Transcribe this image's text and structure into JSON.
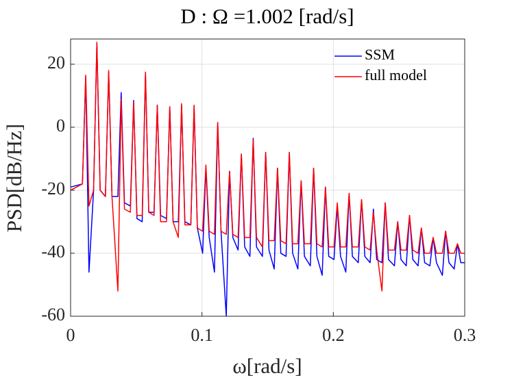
{
  "chart_data": {
    "type": "line",
    "title": "D : Ω =1.002 [rad/s]",
    "x_label": "ω[rad/s]",
    "y_label": "PSD[dB/Hz]",
    "x": [
      0,
      0.009,
      0.0115,
      0.014,
      0.0175,
      0.02,
      0.0225,
      0.0265,
      0.029,
      0.0315,
      0.036,
      0.0385,
      0.041,
      0.0455,
      0.048,
      0.0505,
      0.0545,
      0.057,
      0.0595,
      0.0635,
      0.066,
      0.0685,
      0.073,
      0.0755,
      0.078,
      0.082,
      0.0845,
      0.087,
      0.0915,
      0.094,
      0.0965,
      0.1005,
      0.103,
      0.1055,
      0.1095,
      0.112,
      0.1145,
      0.1185,
      0.121,
      0.1235,
      0.1275,
      0.13,
      0.1325,
      0.1365,
      0.139,
      0.1415,
      0.146,
      0.1485,
      0.151,
      0.155,
      0.1575,
      0.16,
      0.164,
      0.1665,
      0.169,
      0.173,
      0.1755,
      0.178,
      0.1825,
      0.185,
      0.1875,
      0.1915,
      0.194,
      0.1965,
      0.2005,
      0.203,
      0.2055,
      0.2095,
      0.212,
      0.2145,
      0.219,
      0.2215,
      0.224,
      0.228,
      0.2305,
      0.233,
      0.237,
      0.2395,
      0.242,
      0.2465,
      0.249,
      0.2515,
      0.2555,
      0.258,
      0.2605,
      0.2645,
      0.267,
      0.2695,
      0.2735,
      0.276,
      0.2785,
      0.283,
      0.2855,
      0.288,
      0.292,
      0.2945,
      0.297,
      0.3
    ],
    "series": [
      {
        "name": "SSM",
        "color": "#0000ff",
        "values": [
          -19,
          -18,
          16,
          -46,
          -20,
          26.5,
          -20,
          -22,
          17.5,
          -22,
          -22,
          11,
          -24,
          -25,
          8.5,
          -29,
          -30,
          17,
          -27,
          -27,
          7,
          -28,
          -29,
          6.5,
          -30,
          -30,
          7,
          -30,
          -31,
          6.5,
          -32,
          -40,
          -13,
          -35,
          -46,
          1.5,
          -33,
          -60,
          -14,
          -35,
          -39,
          -8.5,
          -38,
          -41,
          -3.5,
          -38,
          -41,
          -8,
          -39,
          -45,
          -13,
          -40,
          -41,
          -8,
          -40,
          -45,
          -17,
          -41,
          -44,
          -13,
          -41,
          -47,
          -19,
          -41,
          -42,
          -25,
          -41,
          -46,
          -21,
          -41,
          -43,
          -23,
          -41,
          -43,
          -26,
          -42,
          -43,
          -24,
          -42,
          -44,
          -30,
          -42,
          -44,
          -28,
          -42,
          -44,
          -32,
          -43,
          -44,
          -35,
          -43,
          -47,
          -33,
          -43,
          -45,
          -37,
          -43,
          -43
        ]
      },
      {
        "name": "full model",
        "color": "#ff0000",
        "values": [
          -20,
          -18,
          16.5,
          -25,
          -20,
          27,
          -20,
          -22,
          18,
          -22,
          -52,
          9,
          -26,
          -27,
          8,
          -28,
          -28,
          17.5,
          -27,
          -28,
          7,
          -30,
          -30,
          6.5,
          -30,
          -35,
          7.5,
          -31,
          -31,
          7,
          -32,
          -33,
          -12,
          -33,
          -34,
          1.5,
          -33,
          -34,
          -14,
          -34,
          -35,
          -8.5,
          -35,
          -35,
          -4,
          -35,
          -38,
          -8,
          -36,
          -36,
          -13,
          -36,
          -37,
          -8,
          -37,
          -37,
          -17,
          -37,
          -37,
          -13,
          -37,
          -38,
          -19,
          -38,
          -38,
          -24,
          -38,
          -38,
          -21,
          -38,
          -38,
          -23,
          -38,
          -39,
          -27,
          -39,
          -52,
          -24,
          -39,
          -39,
          -30,
          -39,
          -39,
          -28,
          -39,
          -40,
          -32,
          -40,
          -40,
          -35,
          -40,
          -40,
          -33,
          -40,
          -40,
          -37,
          -40,
          -40
        ]
      }
    ],
    "xlim": [
      0,
      0.3
    ],
    "xticks": [
      0,
      0.1,
      0.2,
      0.3
    ],
    "ylim": [
      -60,
      28
    ],
    "yticks": [
      -60,
      -40,
      -20,
      0,
      20
    ],
    "grid": true,
    "legend": "top-right"
  }
}
